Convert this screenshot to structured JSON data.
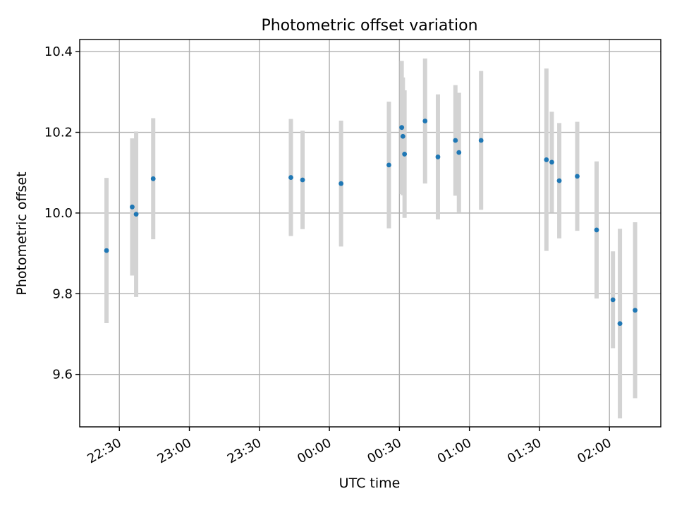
{
  "chart_data": {
    "type": "scatter",
    "title": "Photometric offset variation",
    "xlabel": "UTC time",
    "ylabel": "Photometric offset",
    "x_axis": {
      "kind": "time",
      "range": [
        "22:13",
        "02:22"
      ],
      "tick_labels": [
        "22:30",
        "23:00",
        "23:30",
        "00:00",
        "00:30",
        "01:00",
        "01:30",
        "02:00"
      ],
      "tick_label_rotation": "30deg"
    },
    "y_axis": {
      "range": [
        9.47,
        10.43
      ],
      "ticks": [
        9.6,
        9.8,
        10.0,
        10.2,
        10.4
      ],
      "tick_labels": [
        "9.6",
        "9.8",
        "10.0",
        "10.2",
        "10.4"
      ]
    },
    "grid": true,
    "legend": "none",
    "colors": {
      "marker": "#1f77b4",
      "error_bar": "#d3d3d3"
    },
    "series": [
      {
        "marker": "dot",
        "points": [
          {
            "x": "22:24.5",
            "y": 9.907,
            "err": 0.18
          },
          {
            "x": "22:35.5",
            "y": 10.015,
            "err": 0.17
          },
          {
            "x": "22:37.2",
            "y": 9.997,
            "err": 0.205
          },
          {
            "x": "22:44.5",
            "y": 10.085,
            "err": 0.15
          },
          {
            "x": "23:43.5",
            "y": 10.088,
            "err": 0.145
          },
          {
            "x": "23:48.5",
            "y": 10.082,
            "err": 0.122
          },
          {
            "x": "00:05.0",
            "y": 10.073,
            "err": 0.156
          },
          {
            "x": "00:25.5",
            "y": 10.119,
            "err": 0.157
          },
          {
            "x": "00:31.0",
            "y": 10.212,
            "err": 0.165
          },
          {
            "x": "00:31.5",
            "y": 10.19,
            "err": 0.146
          },
          {
            "x": "00:32.2",
            "y": 10.146,
            "err": 0.158
          },
          {
            "x": "00:41.0",
            "y": 10.228,
            "err": 0.155
          },
          {
            "x": "00:46.5",
            "y": 10.139,
            "err": 0.155
          },
          {
            "x": "00:54.0",
            "y": 10.18,
            "err": 0.137
          },
          {
            "x": "00:55.5",
            "y": 10.15,
            "err": 0.148
          },
          {
            "x": "01:05.0",
            "y": 10.18,
            "err": 0.172
          },
          {
            "x": "01:33.0",
            "y": 10.132,
            "err": 0.226
          },
          {
            "x": "01:35.3",
            "y": 10.126,
            "err": 0.125
          },
          {
            "x": "01:38.5",
            "y": 10.08,
            "err": 0.143
          },
          {
            "x": "01:46.2",
            "y": 10.091,
            "err": 0.135
          },
          {
            "x": "01:54.5",
            "y": 9.958,
            "err": 0.17
          },
          {
            "x": "02:01.5",
            "y": 9.785,
            "err": 0.12
          },
          {
            "x": "02:04.5",
            "y": 9.726,
            "err": 0.235
          },
          {
            "x": "02:11.0",
            "y": 9.759,
            "err": 0.218
          }
        ]
      }
    ]
  }
}
